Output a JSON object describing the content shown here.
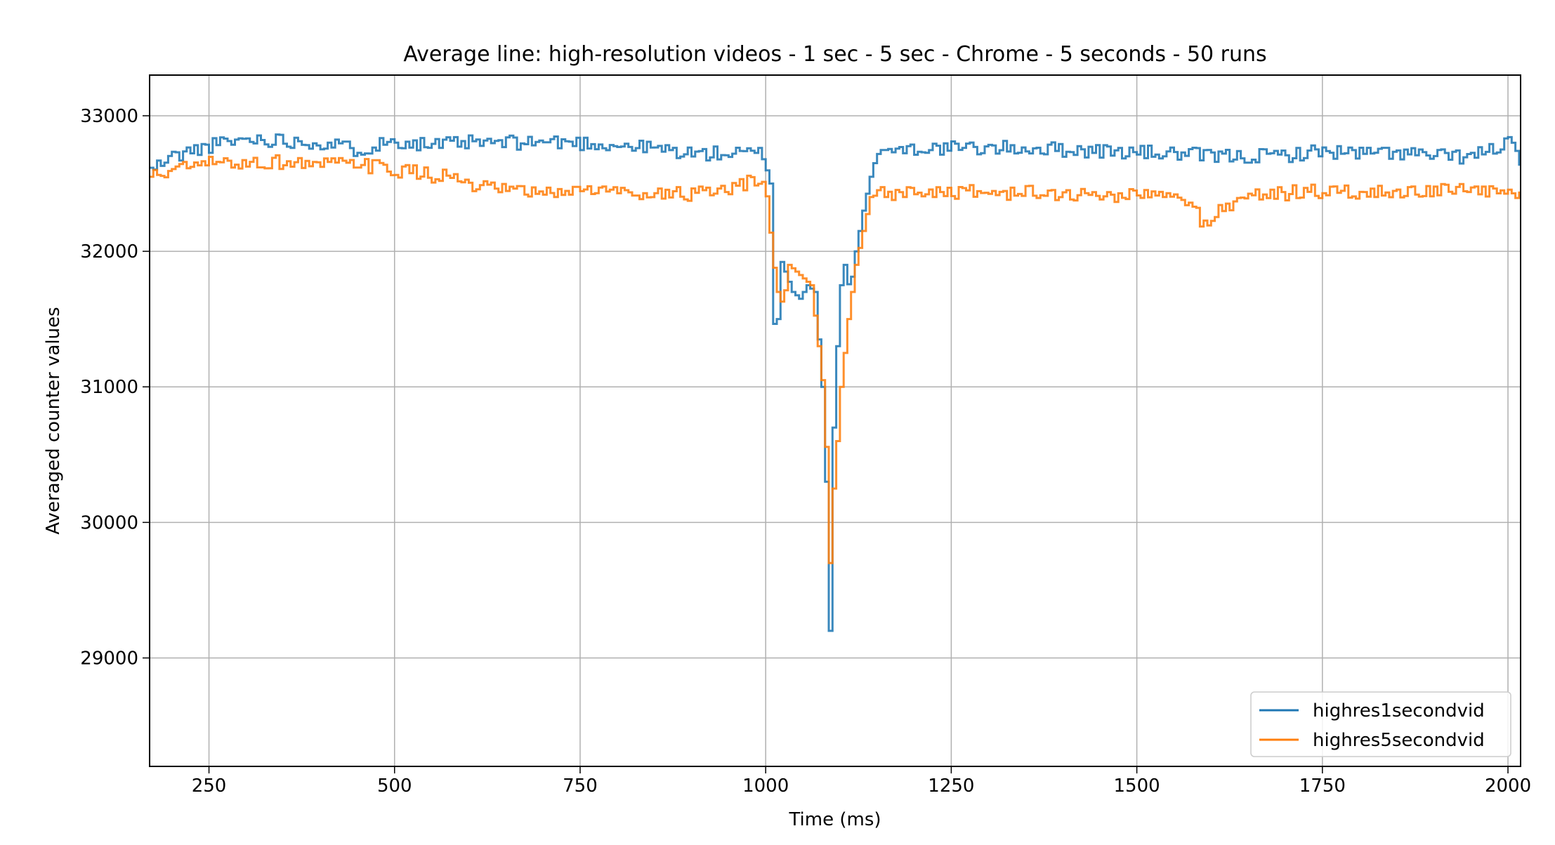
{
  "chart_data": {
    "type": "line",
    "title": "Average line: high-resolution videos - 1 sec - 5 sec - Chrome - 5 seconds - 50 runs",
    "xlabel": "Time (ms)",
    "ylabel": "Averaged counter values",
    "xlim": [
      170,
      2017
    ],
    "ylim": [
      28200,
      33300
    ],
    "xticks": [
      250,
      500,
      750,
      1000,
      1250,
      1500,
      1750,
      2000
    ],
    "yticks": [
      29000,
      30000,
      31000,
      32000,
      33000
    ],
    "grid": true,
    "legend_position": "bottom-right",
    "step": 5,
    "series": [
      {
        "name": "highres1secondvid",
        "color": "#1f77b4",
        "x": [
          170,
          200,
          250,
          300,
          350,
          400,
          450,
          500,
          550,
          600,
          650,
          700,
          750,
          800,
          850,
          900,
          950,
          995,
          1005,
          1012,
          1018,
          1025,
          1035,
          1045,
          1055,
          1065,
          1075,
          1080,
          1085,
          1090,
          1095,
          1100,
          1105,
          1112,
          1120,
          1130,
          1140,
          1150,
          1200,
          1250,
          1300,
          1350,
          1400,
          1450,
          1500,
          1550,
          1600,
          1650,
          1700,
          1750,
          1800,
          1850,
          1900,
          1950,
          2000,
          2017
        ],
        "values": [
          32600,
          32700,
          32780,
          32830,
          32820,
          32800,
          32750,
          32820,
          32780,
          32800,
          32800,
          32810,
          32800,
          32780,
          32760,
          32720,
          32720,
          32720,
          32500,
          31050,
          31950,
          31850,
          31700,
          31650,
          31750,
          31700,
          31000,
          30300,
          29200,
          30700,
          31300,
          31750,
          31900,
          31700,
          32000,
          32300,
          32550,
          32750,
          32760,
          32760,
          32760,
          32760,
          32750,
          32740,
          32730,
          32720,
          32700,
          32700,
          32710,
          32740,
          32720,
          32730,
          32700,
          32700,
          32800,
          32650
        ]
      },
      {
        "name": "highres5secondvid",
        "color": "#ff7f0e",
        "x": [
          170,
          200,
          250,
          300,
          350,
          400,
          450,
          500,
          550,
          580,
          600,
          650,
          700,
          750,
          800,
          850,
          900,
          950,
          980,
          1000,
          1008,
          1015,
          1022,
          1030,
          1040,
          1050,
          1060,
          1070,
          1078,
          1085,
          1090,
          1095,
          1100,
          1110,
          1120,
          1130,
          1140,
          1150,
          1200,
          1250,
          1300,
          1350,
          1400,
          1450,
          1500,
          1550,
          1570,
          1590,
          1610,
          1650,
          1700,
          1750,
          1800,
          1850,
          1900,
          1950,
          2000,
          2017
        ],
        "values": [
          32550,
          32600,
          32650,
          32650,
          32660,
          32640,
          32640,
          32600,
          32560,
          32550,
          32470,
          32450,
          32420,
          32460,
          32440,
          32430,
          32420,
          32440,
          32520,
          32450,
          31950,
          31700,
          31600,
          31900,
          31850,
          31800,
          31750,
          31300,
          30900,
          29700,
          30250,
          30600,
          31000,
          31500,
          31900,
          32150,
          32400,
          32420,
          32440,
          32440,
          32430,
          32430,
          32420,
          32410,
          32420,
          32400,
          32350,
          32200,
          32300,
          32420,
          32430,
          32440,
          32430,
          32440,
          32450,
          32440,
          32440,
          32420
        ]
      }
    ]
  }
}
